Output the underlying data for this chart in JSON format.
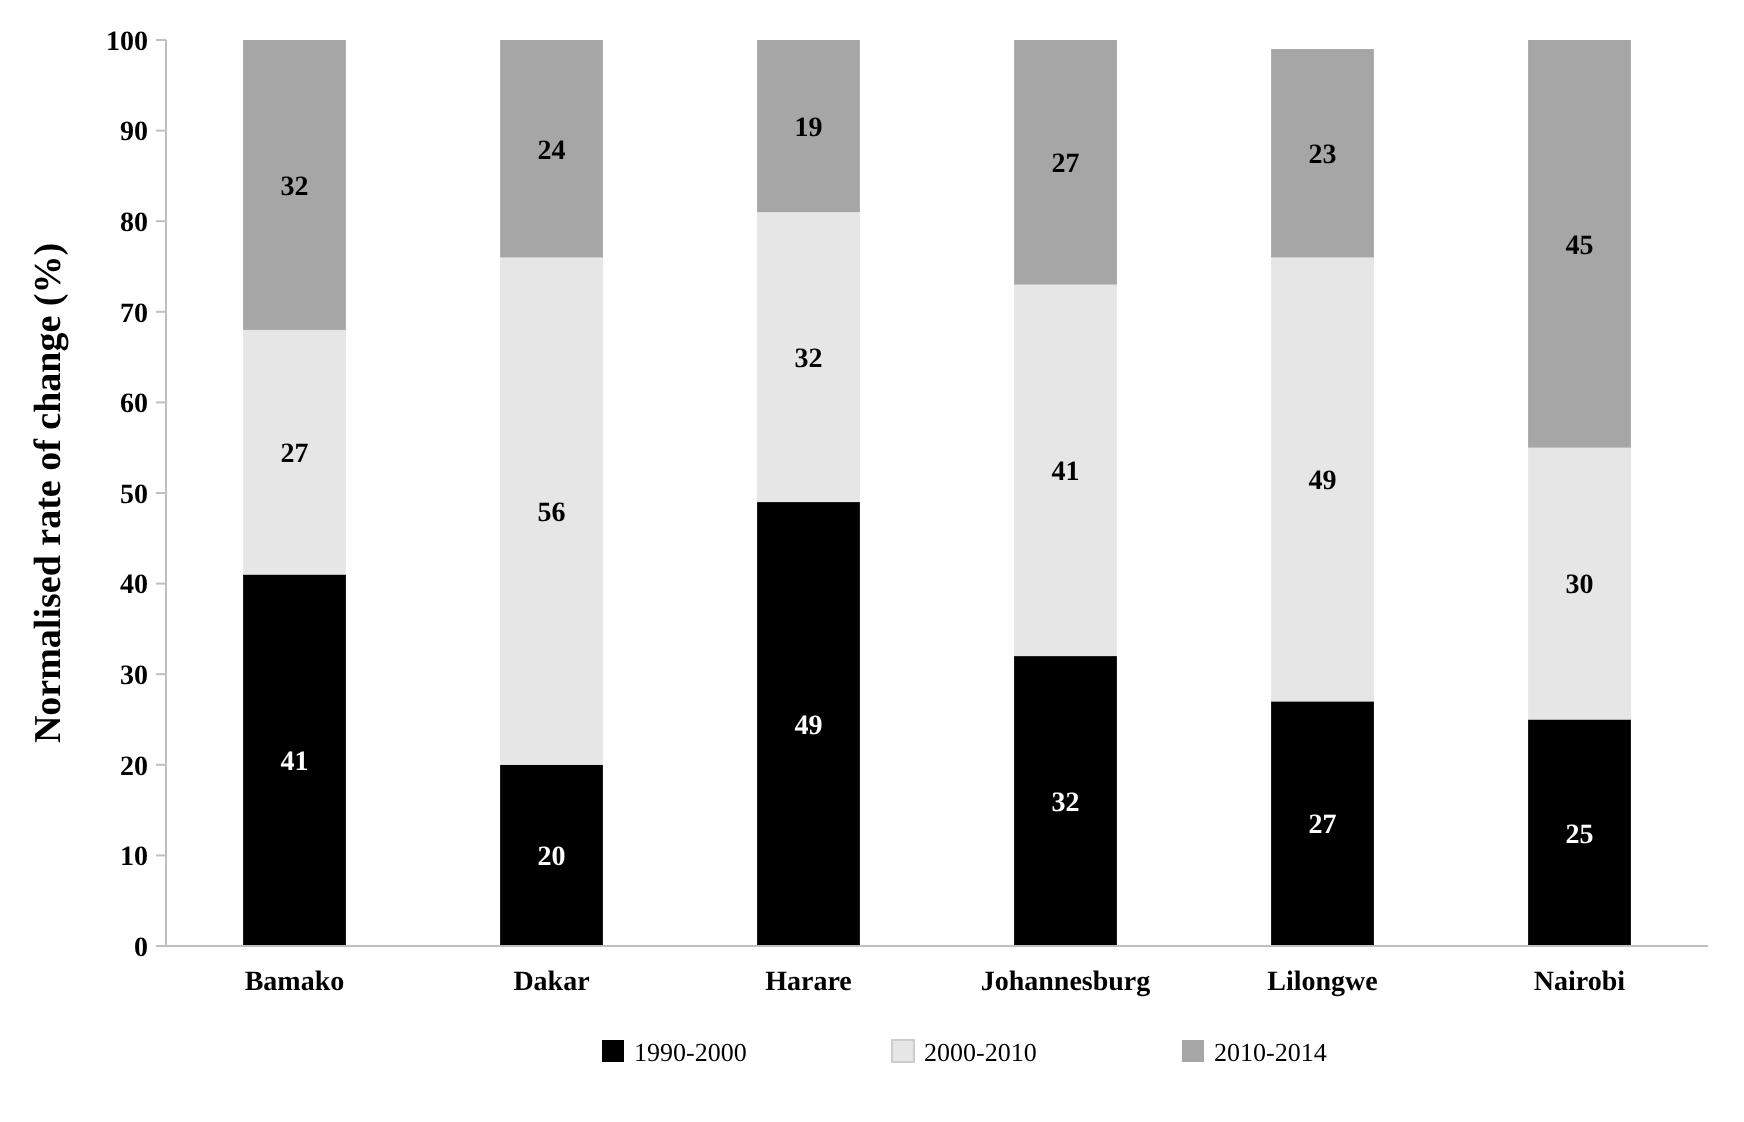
{
  "chart_data": {
    "type": "bar",
    "ylabel": "Normalised rate of change (%)",
    "categories": [
      "Bamako",
      "Dakar",
      "Harare",
      "Johannesburg",
      "Lilongwe",
      "Nairobi"
    ],
    "series": [
      {
        "name": "1990-2000",
        "color": "#000000",
        "values": [
          41,
          20,
          49,
          32,
          27,
          25
        ]
      },
      {
        "name": "2000-2010",
        "color": "#e6e6e6",
        "values": [
          27,
          56,
          32,
          41,
          49,
          30
        ]
      },
      {
        "name": "2010-2014",
        "color": "#a6a6a6",
        "values": [
          32,
          24,
          19,
          27,
          23,
          45
        ]
      }
    ],
    "stacked": true,
    "ylim": [
      0,
      100
    ],
    "yticks": [
      0,
      10,
      20,
      30,
      40,
      50,
      60,
      70,
      80,
      90,
      100
    ],
    "data_labels": true,
    "grid": false,
    "legend": "bottom"
  }
}
